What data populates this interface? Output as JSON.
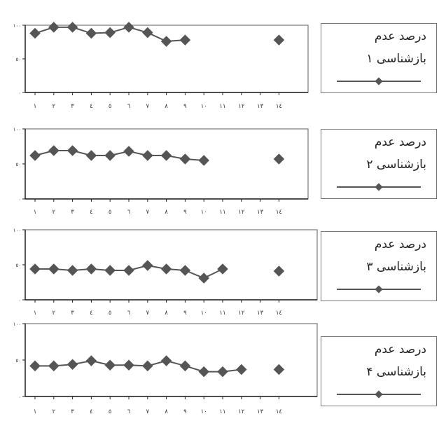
{
  "page_title": "",
  "chart_data": [
    {
      "type": "line",
      "title": "",
      "xlabel": "",
      "ylabel": "",
      "ylim": [
        0,
        100
      ],
      "x_tick_labels": [
        "١",
        "٢",
        "٣",
        "٤",
        "٥",
        "٦",
        "٧",
        "٨",
        "٩",
        "١٠",
        "١١",
        "١٢",
        "١٣",
        "١٤"
      ],
      "y_tick_labels": [
        "٠",
        "٥٠",
        "١٠٠"
      ],
      "legend": {
        "position": "right",
        "line1": "درصد عدم",
        "line2": "بازشناسی ١"
      },
      "series": [
        {
          "name": "درصد عدم بازشناسی ١",
          "color": "#555555",
          "x": [
            1,
            2,
            3,
            4,
            5,
            6,
            7,
            8,
            9,
            14
          ],
          "y": [
            88,
            97,
            97,
            88,
            89,
            97,
            89,
            76,
            78,
            78
          ],
          "connect_upto": 9
        }
      ]
    },
    {
      "type": "line",
      "title": "",
      "xlabel": "",
      "ylabel": "",
      "ylim": [
        0,
        100
      ],
      "x_tick_labels": [
        "١",
        "٢",
        "٣",
        "٤",
        "٥",
        "٦",
        "٧",
        "٨",
        "٩",
        "١٠",
        "١١",
        "١٢",
        "١٣",
        "١٤"
      ],
      "y_tick_labels": [
        "٠",
        "٥٠",
        "١٠٠"
      ],
      "legend": {
        "position": "right",
        "line1": "درصد عدم",
        "line2": "بازشناسی ٢"
      },
      "series": [
        {
          "name": "درصد عدم بازشناسی ٢",
          "color": "#555555",
          "x": [
            1,
            2,
            3,
            4,
            5,
            6,
            7,
            8,
            9,
            10,
            14
          ],
          "y": [
            62,
            69,
            69,
            62,
            62,
            68,
            62,
            62,
            57,
            55,
            57
          ],
          "connect_upto": 10
        }
      ]
    },
    {
      "type": "line",
      "title": "",
      "xlabel": "",
      "ylabel": "",
      "ylim": [
        0,
        100
      ],
      "x_tick_labels": [
        "١",
        "٢",
        "٣",
        "٤",
        "٥",
        "٦",
        "٧",
        "٨",
        "٩",
        "١٠",
        "١١",
        "١٢",
        "١٣",
        "١٤"
      ],
      "y_tick_labels": [
        "٠",
        "٥٠",
        "١٠٠"
      ],
      "legend": {
        "position": "right",
        "line1": "درصد عدم",
        "line2": "بازشناسی ٣"
      },
      "series": [
        {
          "name": "درصد عدم بازشناسی ٣",
          "color": "#555555",
          "x": [
            1,
            2,
            3,
            4,
            5,
            6,
            7,
            8,
            9,
            10,
            11,
            14
          ],
          "y": [
            44,
            44,
            42,
            44,
            42,
            42,
            49,
            44,
            42,
            31,
            44,
            41
          ],
          "connect_upto": 11
        }
      ]
    },
    {
      "type": "line",
      "title": "",
      "xlabel": "",
      "ylabel": "",
      "ylim": [
        0,
        100
      ],
      "x_tick_labels": [
        "١",
        "٢",
        "٣",
        "٤",
        "٥",
        "٦",
        "٧",
        "٨",
        "٩",
        "١٠",
        "١١",
        "١٢",
        "١٣",
        "١٤"
      ],
      "y_tick_labels": [
        "٠",
        "٥٠",
        "١٠٠"
      ],
      "legend": {
        "position": "right",
        "line1": "درصد عدم",
        "line2": "بازشناسی ۴"
      },
      "series": [
        {
          "name": "درصد عدم بازشناسی ۴",
          "color": "#555555",
          "x": [
            1,
            2,
            3,
            4,
            5,
            6,
            7,
            8,
            9,
            10,
            11,
            12,
            14
          ],
          "y": [
            42,
            42,
            44,
            49,
            43,
            43,
            42,
            49,
            42,
            34,
            34,
            37,
            37
          ],
          "connect_upto": 12
        }
      ]
    }
  ]
}
